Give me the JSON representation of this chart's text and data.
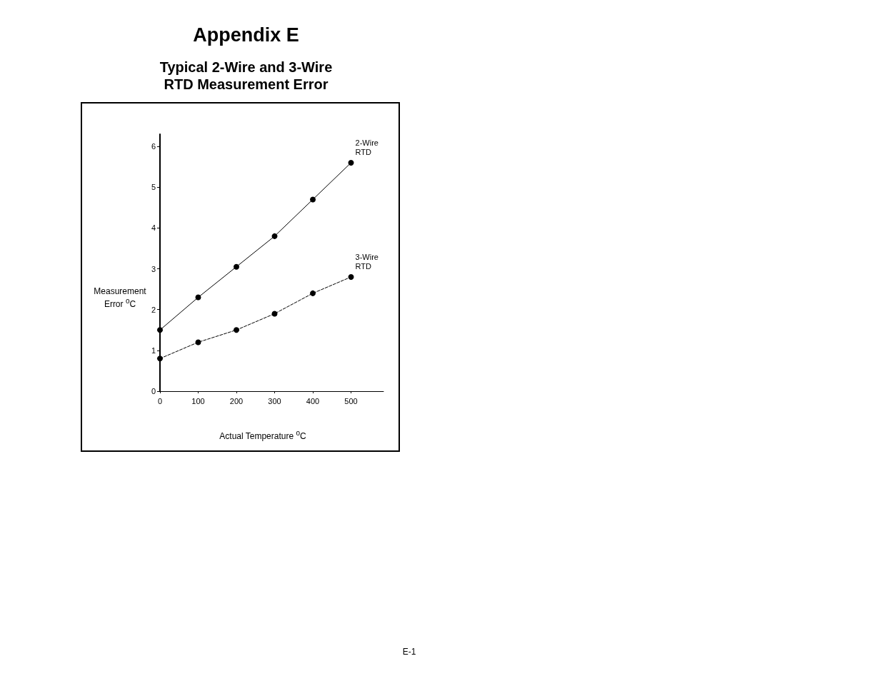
{
  "chart_data": {
    "type": "line",
    "title": "Appendix E",
    "subtitle": "Typical 2-Wire and 3-Wire\nRTD Measurement Error",
    "xlabel": "Actual Temperature $^{o}$C",
    "ylabel": "Measurement\nError $^{o}$C",
    "annotations": [
      "E-1"
    ],
    "x": [
      0,
      100,
      200,
      300,
      400,
      500
    ],
    "series": [
      {
        "name": "2-Wire RTD",
        "color": "#000000",
        "line_style": "solid",
        "values": [
          1.5,
          2.3,
          3.05,
          3.8,
          4.7,
          5.6
        ]
      },
      {
        "name": "3-Wire RTD",
        "color": "#000000",
        "line_style": "dashed",
        "values": [
          0.8,
          1.2,
          1.5,
          1.9,
          2.4,
          2.8
        ]
      }
    ],
    "xlim": [
      0,
      585
    ],
    "xticks": [
      0,
      100,
      200,
      300,
      400,
      500
    ],
    "ylim": [
      0,
      6.3
    ],
    "yticks": [
      0,
      1,
      2,
      3,
      4,
      5,
      6
    ],
    "marker": "circle",
    "grid": false,
    "legend": false
  }
}
